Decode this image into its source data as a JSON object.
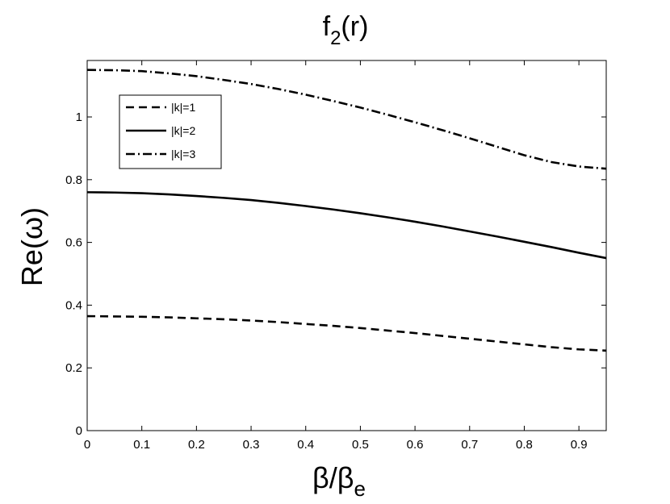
{
  "chart_data": {
    "type": "line",
    "title": "f",
    "title_subscript": "2",
    "title_suffix": "(r)",
    "xlabel": "β/β",
    "xlabel_subscript": "e",
    "ylabel": "Re(ω)",
    "xlim": [
      0,
      0.95
    ],
    "ylim": [
      0,
      1.18
    ],
    "xticks": [
      0,
      0.1,
      0.2,
      0.3,
      0.4,
      0.5,
      0.6,
      0.7,
      0.8,
      0.9
    ],
    "xtick_labels": [
      "0",
      "0.1",
      "0.2",
      "0.3",
      "0.4",
      "0.5",
      "0.6",
      "0.7",
      "0.8",
      "0.9"
    ],
    "yticks": [
      0,
      0.2,
      0.4,
      0.6,
      0.8,
      1
    ],
    "ytick_labels": [
      "0",
      "0.2",
      "0.4",
      "0.6",
      "0.8",
      "1"
    ],
    "grid": false,
    "legend_position": "top-left",
    "x": [
      0,
      0.05,
      0.1,
      0.15,
      0.2,
      0.25,
      0.3,
      0.35,
      0.4,
      0.45,
      0.5,
      0.55,
      0.6,
      0.65,
      0.7,
      0.75,
      0.8,
      0.85,
      0.9,
      0.95
    ],
    "series": [
      {
        "name": "|k|=1",
        "style": "dashed",
        "color": "#000000",
        "values": [
          0.365,
          0.364,
          0.363,
          0.361,
          0.358,
          0.355,
          0.351,
          0.346,
          0.34,
          0.334,
          0.327,
          0.319,
          0.311,
          0.302,
          0.293,
          0.284,
          0.275,
          0.266,
          0.259,
          0.255
        ]
      },
      {
        "name": "|k|=2",
        "style": "solid",
        "color": "#000000",
        "values": [
          0.76,
          0.759,
          0.757,
          0.753,
          0.748,
          0.742,
          0.735,
          0.726,
          0.716,
          0.705,
          0.693,
          0.68,
          0.666,
          0.651,
          0.635,
          0.619,
          0.602,
          0.585,
          0.567,
          0.55
        ]
      },
      {
        "name": "|k|=3",
        "style": "dashdot",
        "color": "#000000",
        "values": [
          1.15,
          1.149,
          1.146,
          1.139,
          1.13,
          1.118,
          1.105,
          1.089,
          1.071,
          1.051,
          1.03,
          1.007,
          0.983,
          0.958,
          0.932,
          0.905,
          0.878,
          0.856,
          0.842,
          0.835
        ]
      }
    ]
  }
}
